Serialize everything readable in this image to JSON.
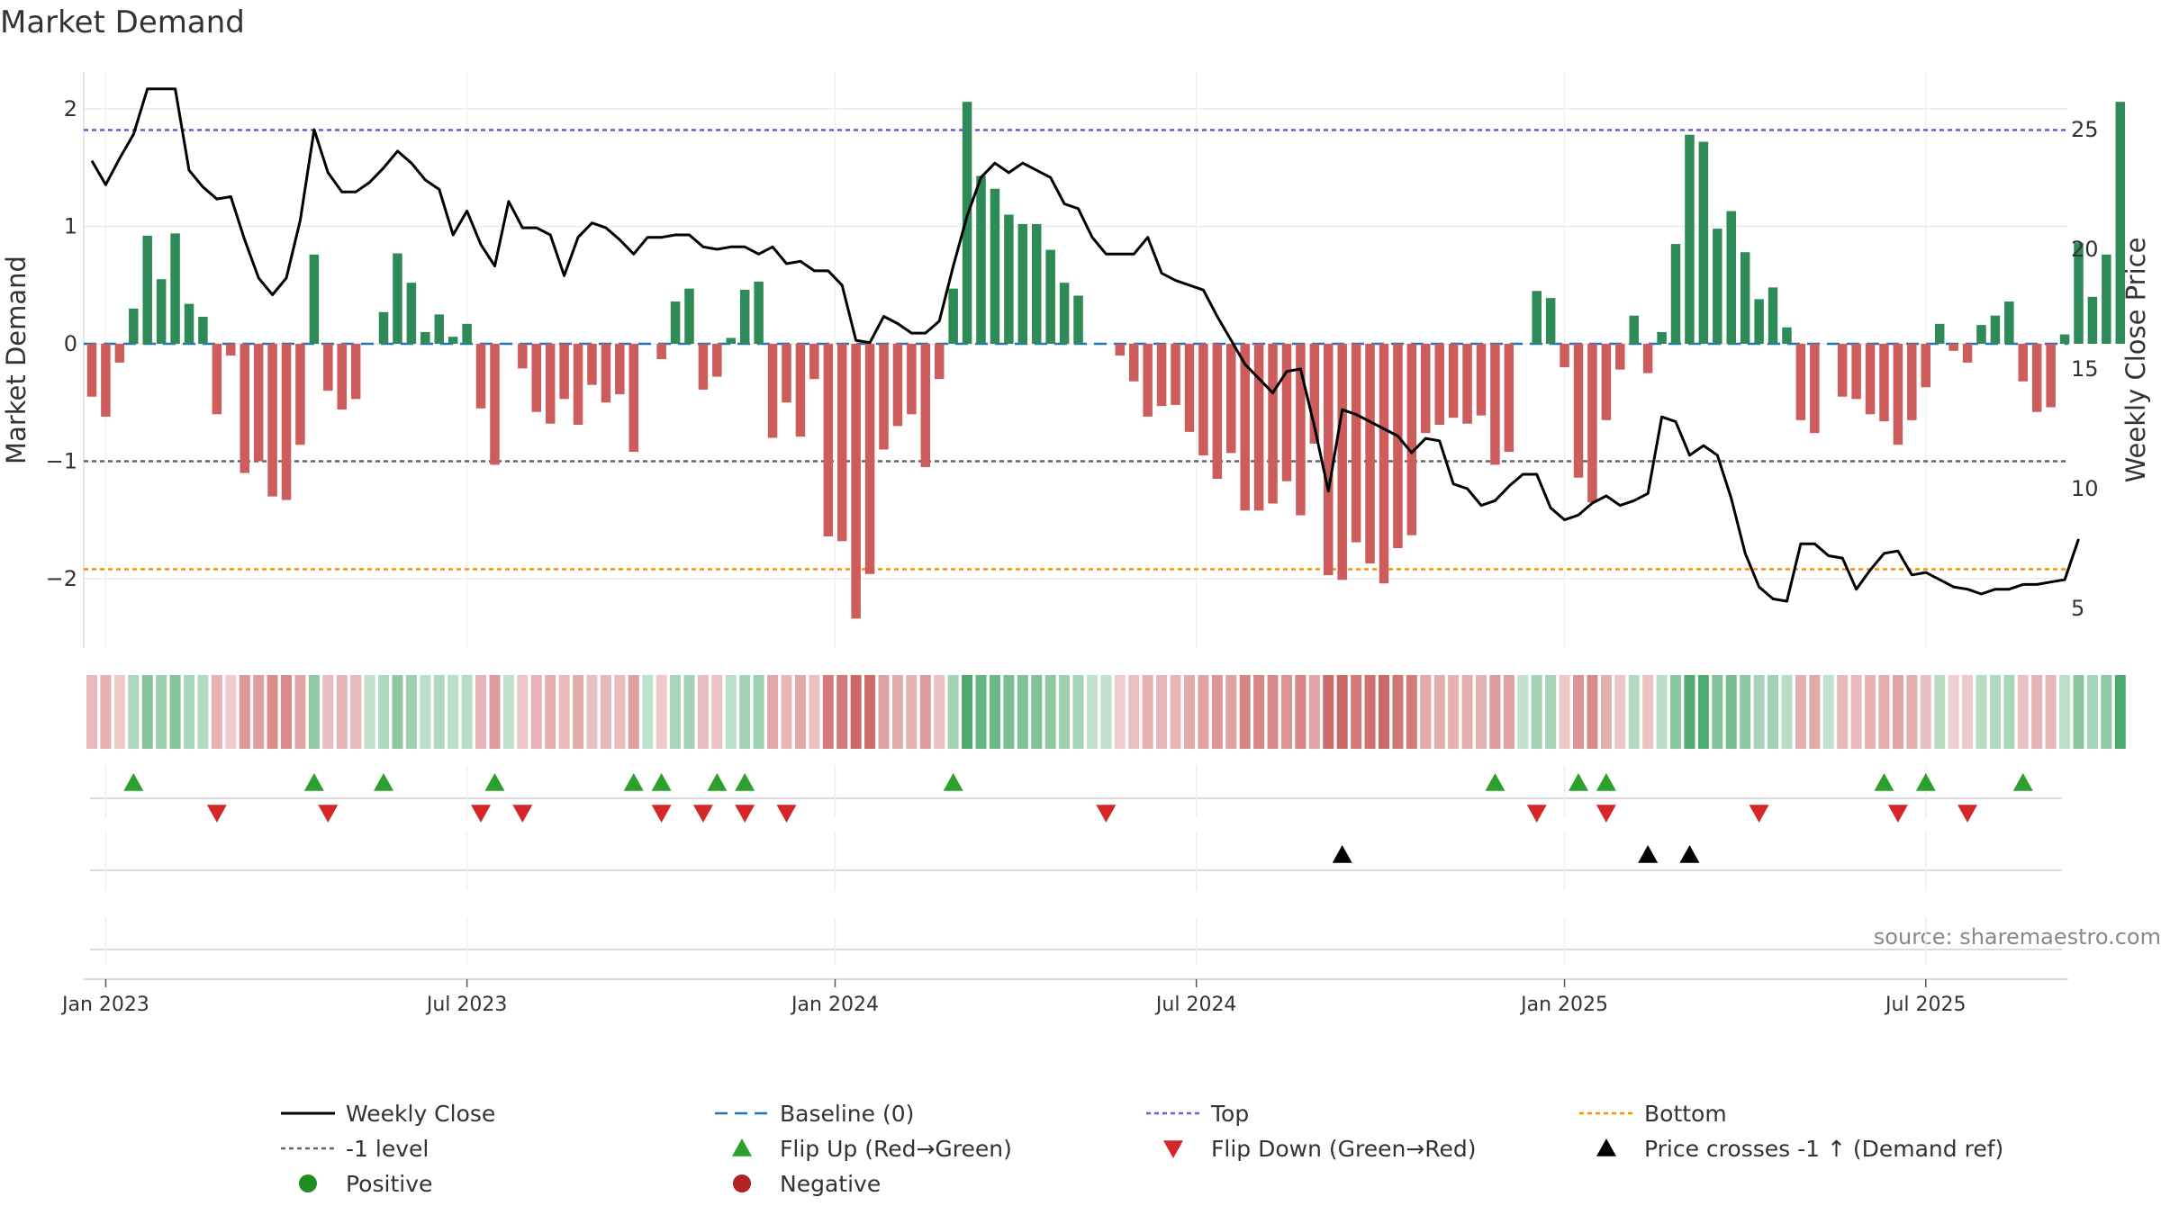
{
  "chart_data": {
    "type": "bar",
    "title": "Market Demand",
    "ylabel": "Market Demand",
    "y2label": "Weekly Close Price",
    "source": "source: sharemaestro.com",
    "ylim": [
      -2.6,
      2.05
    ],
    "y2lim": [
      3.7,
      27.8
    ],
    "yticks": [
      2,
      1,
      0,
      -1,
      -2
    ],
    "yticklabels": [
      "2",
      "1",
      "0",
      "−1",
      "−2"
    ],
    "y2ticks": [
      25,
      20,
      15,
      10,
      5
    ],
    "grid": true,
    "start_date": "2022-12-26",
    "weeks": 144,
    "x_ticks": [
      {
        "label": "Jan 2023",
        "week": 1
      },
      {
        "label": "Jul 2023",
        "week": 27
      },
      {
        "label": "Jan 2024",
        "week": 53.5
      },
      {
        "label": "Jul 2024",
        "week": 79.5
      },
      {
        "label": "Jan 2025",
        "week": 106
      },
      {
        "label": "Jul 2025",
        "week": 132
      }
    ],
    "series": [
      {
        "name": "Market Demand",
        "kind": "bar",
        "positive_color": "#2e8b57",
        "negative_color": "#cd5c5c",
        "values": [
          -0.45,
          -0.62,
          -0.16,
          0.3,
          0.92,
          0.55,
          0.94,
          0.34,
          0.23,
          -0.6,
          -0.1,
          -1.1,
          -1.0,
          -1.3,
          -1.33,
          -0.86,
          0.76,
          -0.4,
          -0.56,
          -0.47,
          0.0,
          0.27,
          0.77,
          0.52,
          0.1,
          0.25,
          0.06,
          0.17,
          -0.55,
          -1.03,
          0.0,
          -0.21,
          -0.58,
          -0.68,
          -0.47,
          -0.69,
          -0.35,
          -0.5,
          -0.43,
          -0.92,
          0.0,
          -0.13,
          0.36,
          0.47,
          -0.39,
          -0.28,
          0.05,
          0.46,
          0.53,
          -0.8,
          -0.5,
          -0.79,
          -0.3,
          -1.64,
          -1.68,
          -2.34,
          -1.96,
          -0.9,
          -0.7,
          -0.6,
          -1.05,
          -0.3,
          0.47,
          2.06,
          1.43,
          1.32,
          1.1,
          1.02,
          1.02,
          0.8,
          0.52,
          0.41,
          0.0,
          0.0,
          -0.1,
          -0.32,
          -0.62,
          -0.53,
          -0.52,
          -0.75,
          -0.95,
          -1.15,
          -0.93,
          -1.42,
          -1.42,
          -1.36,
          -1.17,
          -1.46,
          -0.85,
          -1.97,
          -2.01,
          -1.69,
          -1.87,
          -2.04,
          -1.74,
          -1.63,
          -0.76,
          -0.69,
          -0.63,
          -0.68,
          -0.61,
          -1.03,
          -0.92,
          0.0,
          0.45,
          0.39,
          -0.2,
          -1.14,
          -1.35,
          -0.65,
          -0.22,
          0.24,
          -0.25,
          0.1,
          0.85,
          1.78,
          1.72,
          0.98,
          1.13,
          0.78,
          0.38,
          0.48,
          0.14,
          -0.65,
          -0.76,
          0.0,
          -0.45,
          -0.47,
          -0.6,
          -0.66,
          -0.86,
          -0.65,
          -0.37,
          0.17,
          -0.06,
          -0.16,
          0.16,
          0.24,
          0.36,
          -0.32,
          -0.58,
          -0.54,
          0.08,
          0.86,
          0.4,
          0.76,
          2.06
        ]
      },
      {
        "name": "Weekly Close",
        "kind": "line",
        "axis": "right",
        "color": "#000000",
        "values": [
          23.7,
          22.7,
          23.8,
          24.8,
          26.7,
          26.7,
          26.7,
          23.3,
          22.6,
          22.1,
          22.2,
          20.4,
          18.8,
          18.1,
          18.8,
          21.2,
          25.0,
          23.2,
          22.4,
          22.4,
          22.8,
          23.4,
          24.1,
          23.6,
          22.9,
          22.5,
          20.6,
          21.6,
          20.2,
          19.3,
          22.0,
          20.9,
          20.9,
          20.6,
          18.9,
          20.5,
          21.1,
          20.9,
          20.4,
          19.8,
          20.5,
          20.5,
          20.6,
          20.6,
          20.1,
          20.0,
          20.1,
          20.1,
          19.8,
          20.1,
          19.4,
          19.5,
          19.1,
          19.1,
          18.5,
          16.2,
          16.1,
          17.2,
          16.9,
          16.5,
          16.5,
          17.0,
          19.3,
          21.4,
          23.0,
          23.6,
          23.2,
          23.6,
          23.3,
          23.0,
          21.9,
          21.7,
          20.5,
          19.8,
          19.8,
          19.8,
          20.5,
          19.0,
          18.7,
          18.5,
          18.3,
          17.2,
          16.2,
          15.2,
          14.6,
          14.0,
          14.9,
          15.0,
          12.6,
          9.9,
          13.3,
          13.1,
          12.8,
          12.5,
          12.2,
          11.5,
          12.1,
          12.0,
          10.2,
          10.0,
          9.3,
          9.5,
          10.1,
          10.6,
          10.6,
          9.2,
          8.7,
          8.9,
          9.4,
          9.7,
          9.3,
          9.5,
          9.8,
          13.0,
          12.8,
          11.4,
          11.8,
          11.4,
          9.6,
          7.3,
          5.9,
          5.4,
          5.3,
          7.7,
          7.7,
          7.2,
          7.1,
          5.8,
          6.6,
          7.3,
          7.4,
          6.4,
          6.5,
          6.2,
          5.9,
          5.8,
          5.6,
          5.8,
          5.8,
          6.0,
          6.0,
          6.1,
          6.2,
          7.9
        ]
      }
    ],
    "reference_lines": [
      {
        "name": "Baseline (0)",
        "value": 0,
        "color": "#1f77b4",
        "dash": "14 8"
      },
      {
        "name": "Top",
        "value": 1.82,
        "color": "#6a5acd",
        "dash": "5 4"
      },
      {
        "name": "-1 level",
        "value": -1,
        "color": "#666666",
        "dash": "5 4"
      },
      {
        "name": "Bottom",
        "value": -1.92,
        "color": "#ff8c00",
        "dash": "5 4"
      }
    ],
    "flip_up_weeks": [
      3,
      16,
      21,
      29,
      39,
      41,
      45,
      47,
      62,
      101,
      107,
      109,
      129,
      132,
      139
    ],
    "flip_down_weeks": [
      9,
      17,
      28,
      31,
      41,
      44,
      47,
      50,
      73,
      104,
      109,
      120,
      130,
      135
    ],
    "price_cross_weeks": [
      90,
      112,
      115
    ],
    "legend": [
      {
        "label": "Weekly Close",
        "symbol": "line",
        "color": "#000000"
      },
      {
        "label": "Baseline (0)",
        "symbol": "dash",
        "color": "#1f77b4"
      },
      {
        "label": "Top",
        "symbol": "dot",
        "color": "#6a5acd"
      },
      {
        "label": "Bottom",
        "symbol": "dot",
        "color": "#ff8c00"
      },
      {
        "label": "-1 level",
        "symbol": "dot",
        "color": "#666666"
      },
      {
        "label": "Flip Up (Red→Green)",
        "symbol": "tri-up",
        "color": "#2ca02c"
      },
      {
        "label": "Flip Down (Green→Red)",
        "symbol": "tri-down",
        "color": "#d62728"
      },
      {
        "label": "Price crosses -1 ↑ (Demand ref)",
        "symbol": "tri-up",
        "color": "#000000"
      },
      {
        "label": "Positive",
        "symbol": "circle",
        "color": "#228b22"
      },
      {
        "label": "Negative",
        "symbol": "circle",
        "color": "#b22222"
      }
    ]
  }
}
